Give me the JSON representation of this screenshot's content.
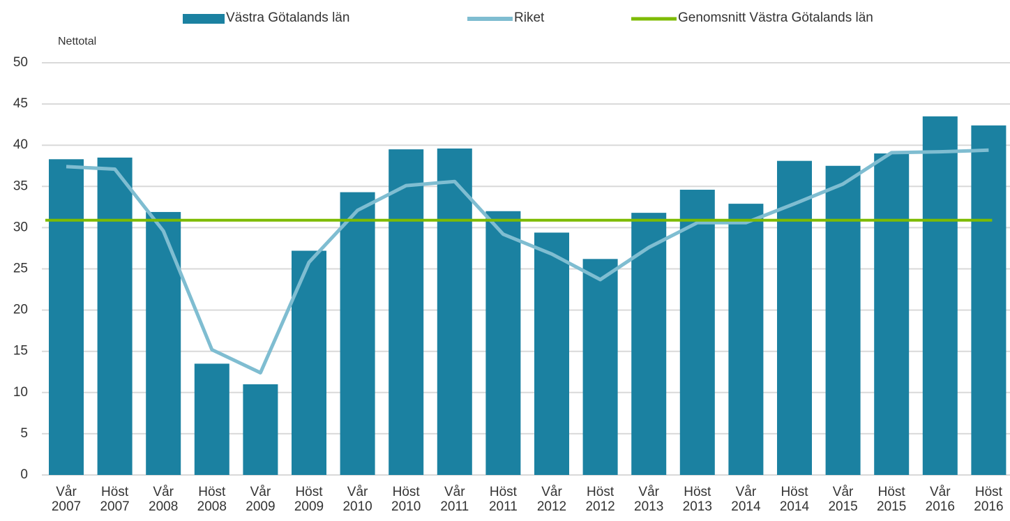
{
  "chart_data": {
    "type": "bar",
    "y_label": "Nettotal",
    "categories": [
      "Vår 2007",
      "Höst 2007",
      "Vår 2008",
      "Höst 2008",
      "Vår 2009",
      "Höst 2009",
      "Vår 2010",
      "Höst 2010",
      "Vår 2011",
      "Höst 2011",
      "Vår 2012",
      "Höst 2012",
      "Vår 2013",
      "Höst 2013",
      "Vår 2014",
      "Höst 2014",
      "Vår 2015",
      "Höst 2015",
      "Vår 2016",
      "Höst 2016"
    ],
    "series": [
      {
        "name": "Västra Götalands län",
        "type": "bar",
        "color": "#1b81a1",
        "values": [
          38.3,
          38.5,
          31.9,
          13.5,
          11.0,
          27.2,
          34.3,
          39.5,
          39.6,
          32.0,
          29.4,
          26.2,
          31.8,
          34.6,
          32.9,
          38.1,
          37.5,
          39.0,
          43.5,
          42.4
        ]
      },
      {
        "name": "Riket",
        "type": "line",
        "color": "#7fbdd1",
        "values": [
          37.4,
          37.1,
          29.6,
          15.2,
          12.4,
          25.8,
          32.1,
          35.1,
          35.6,
          29.2,
          26.8,
          23.7,
          27.6,
          30.6,
          30.6,
          32.9,
          35.3,
          39.1,
          39.2,
          39.4
        ]
      }
    ],
    "reference_line": {
      "name": "Genomsnitt Västra Götalands län",
      "value": 30.9,
      "color": "#7dbb00"
    },
    "ylim": [
      0,
      50
    ],
    "yticks": [
      0,
      5,
      10,
      15,
      20,
      25,
      30,
      35,
      40,
      45,
      50
    ],
    "grid": true
  }
}
